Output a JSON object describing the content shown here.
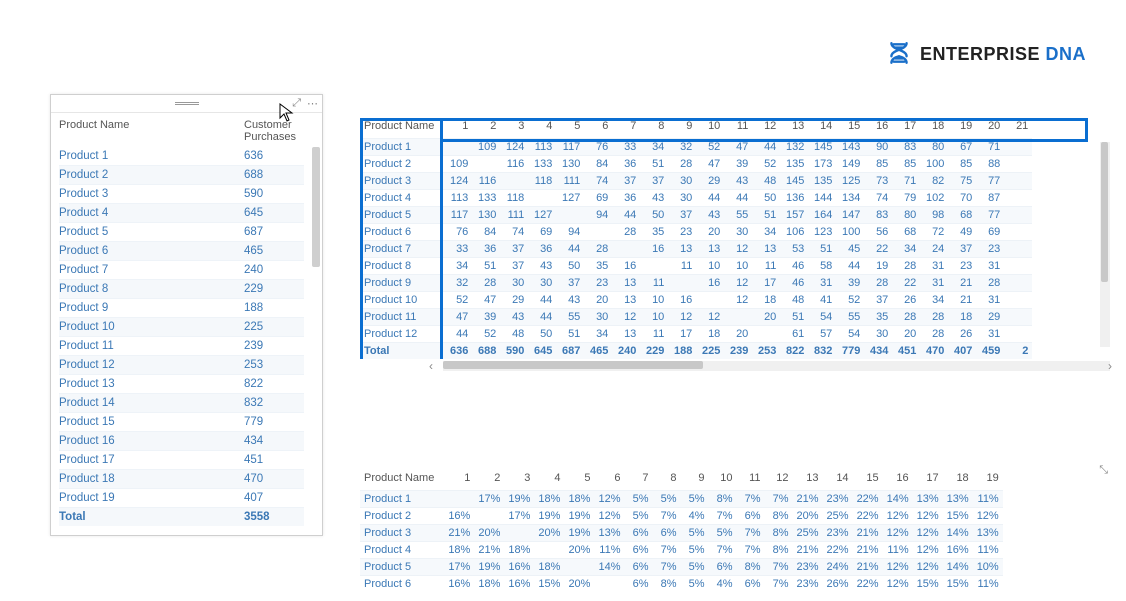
{
  "logo": {
    "text_main": "ENTERPRISE",
    "text_accent": "DNA"
  },
  "colors": {
    "accent": "#1a6fc9",
    "link": "#3b78b5",
    "highlight_border": "#0a6ed1",
    "row_alt_bg": "#f5f8fb",
    "border": "#cfcfcf",
    "scroll": "#cfcfcf"
  },
  "left_table": {
    "type": "table",
    "columns": [
      "Product Name",
      "Customer Purchases"
    ],
    "rows": [
      [
        "Product 1",
        636
      ],
      [
        "Product 2",
        688
      ],
      [
        "Product 3",
        590
      ],
      [
        "Product 4",
        645
      ],
      [
        "Product 5",
        687
      ],
      [
        "Product 6",
        465
      ],
      [
        "Product 7",
        240
      ],
      [
        "Product 8",
        229
      ],
      [
        "Product 9",
        188
      ],
      [
        "Product 10",
        225
      ],
      [
        "Product 11",
        239
      ],
      [
        "Product 12",
        253
      ],
      [
        "Product 13",
        822
      ],
      [
        "Product 14",
        832
      ],
      [
        "Product 15",
        779
      ],
      [
        "Product 16",
        434
      ],
      [
        "Product 17",
        451
      ],
      [
        "Product 18",
        470
      ],
      [
        "Product 19",
        407
      ]
    ],
    "total_label": "Total",
    "total_value": 3558
  },
  "matrix1": {
    "type": "matrix",
    "row_header": "Product Name",
    "col_headers": [
      1,
      2,
      3,
      4,
      5,
      6,
      7,
      8,
      9,
      10,
      11,
      12,
      13,
      14,
      15,
      16,
      17,
      18,
      19,
      20,
      21
    ],
    "rows": [
      {
        "name": "Product 1",
        "v": [
          null,
          109,
          124,
          113,
          117,
          76,
          33,
          34,
          32,
          52,
          47,
          44,
          132,
          145,
          143,
          90,
          83,
          80,
          67,
          71,
          null
        ]
      },
      {
        "name": "Product 2",
        "v": [
          109,
          null,
          116,
          133,
          130,
          84,
          36,
          51,
          28,
          47,
          39,
          52,
          135,
          173,
          149,
          85,
          85,
          100,
          85,
          88,
          null
        ]
      },
      {
        "name": "Product 3",
        "v": [
          124,
          116,
          null,
          118,
          111,
          74,
          37,
          37,
          30,
          29,
          43,
          48,
          145,
          135,
          125,
          73,
          71,
          82,
          75,
          77,
          null
        ]
      },
      {
        "name": "Product 4",
        "v": [
          113,
          133,
          118,
          null,
          127,
          69,
          36,
          43,
          30,
          44,
          44,
          50,
          136,
          144,
          134,
          74,
          79,
          102,
          70,
          87,
          null
        ]
      },
      {
        "name": "Product 5",
        "v": [
          117,
          130,
          111,
          127,
          null,
          94,
          44,
          50,
          37,
          43,
          55,
          51,
          157,
          164,
          147,
          83,
          80,
          98,
          68,
          77,
          null
        ]
      },
      {
        "name": "Product 6",
        "v": [
          76,
          84,
          74,
          69,
          94,
          null,
          28,
          35,
          23,
          20,
          30,
          34,
          106,
          123,
          100,
          56,
          68,
          72,
          49,
          69,
          null
        ]
      },
      {
        "name": "Product 7",
        "v": [
          33,
          36,
          37,
          36,
          44,
          28,
          null,
          16,
          13,
          13,
          12,
          13,
          53,
          51,
          45,
          22,
          34,
          24,
          37,
          23,
          null
        ]
      },
      {
        "name": "Product 8",
        "v": [
          34,
          51,
          37,
          43,
          50,
          35,
          16,
          null,
          11,
          10,
          10,
          11,
          46,
          58,
          44,
          19,
          28,
          31,
          23,
          31,
          null
        ]
      },
      {
        "name": "Product 9",
        "v": [
          32,
          28,
          30,
          30,
          37,
          23,
          13,
          11,
          null,
          16,
          12,
          17,
          46,
          31,
          39,
          28,
          22,
          31,
          21,
          28,
          null
        ]
      },
      {
        "name": "Product 10",
        "v": [
          52,
          47,
          29,
          44,
          43,
          20,
          13,
          10,
          16,
          null,
          12,
          18,
          48,
          41,
          52,
          37,
          26,
          34,
          21,
          31,
          null
        ]
      },
      {
        "name": "Product 11",
        "v": [
          47,
          39,
          43,
          44,
          55,
          30,
          12,
          10,
          12,
          12,
          null,
          20,
          51,
          54,
          55,
          35,
          28,
          28,
          18,
          29,
          null
        ]
      },
      {
        "name": "Product 12",
        "v": [
          44,
          52,
          48,
          50,
          51,
          34,
          13,
          11,
          17,
          18,
          20,
          null,
          61,
          57,
          54,
          30,
          20,
          28,
          26,
          31,
          null
        ]
      }
    ],
    "total_label": "Total",
    "totals": [
      636,
      688,
      590,
      645,
      687,
      465,
      240,
      229,
      188,
      225,
      239,
      253,
      822,
      832,
      779,
      434,
      451,
      470,
      407,
      459,
      2
    ]
  },
  "matrix2": {
    "type": "matrix",
    "row_header": "Product Name",
    "col_headers": [
      1,
      2,
      3,
      4,
      5,
      6,
      7,
      8,
      9,
      10,
      11,
      12,
      13,
      14,
      15,
      16,
      17,
      18,
      19
    ],
    "rows": [
      {
        "name": "Product 1",
        "v": [
          null,
          "17%",
          "19%",
          "18%",
          "18%",
          "12%",
          "5%",
          "5%",
          "5%",
          "8%",
          "7%",
          "7%",
          "21%",
          "23%",
          "22%",
          "14%",
          "13%",
          "13%",
          "11%"
        ]
      },
      {
        "name": "Product 2",
        "v": [
          "16%",
          null,
          "17%",
          "19%",
          "19%",
          "12%",
          "5%",
          "7%",
          "4%",
          "7%",
          "6%",
          "8%",
          "20%",
          "25%",
          "22%",
          "12%",
          "12%",
          "15%",
          "12%"
        ]
      },
      {
        "name": "Product 3",
        "v": [
          "21%",
          "20%",
          null,
          "20%",
          "19%",
          "13%",
          "6%",
          "6%",
          "5%",
          "5%",
          "7%",
          "8%",
          "25%",
          "23%",
          "21%",
          "12%",
          "12%",
          "14%",
          "13%"
        ]
      },
      {
        "name": "Product 4",
        "v": [
          "18%",
          "21%",
          "18%",
          null,
          "20%",
          "11%",
          "6%",
          "7%",
          "5%",
          "7%",
          "7%",
          "8%",
          "21%",
          "22%",
          "21%",
          "11%",
          "12%",
          "16%",
          "11%"
        ]
      },
      {
        "name": "Product 5",
        "v": [
          "17%",
          "19%",
          "16%",
          "18%",
          null,
          "14%",
          "6%",
          "7%",
          "5%",
          "6%",
          "8%",
          "7%",
          "23%",
          "24%",
          "21%",
          "12%",
          "12%",
          "14%",
          "10%"
        ]
      },
      {
        "name": "Product 6",
        "v": [
          "16%",
          "18%",
          "16%",
          "15%",
          "20%",
          null,
          "6%",
          "8%",
          "5%",
          "4%",
          "6%",
          "7%",
          "23%",
          "26%",
          "22%",
          "12%",
          "15%",
          "15%",
          "11%"
        ]
      }
    ]
  }
}
